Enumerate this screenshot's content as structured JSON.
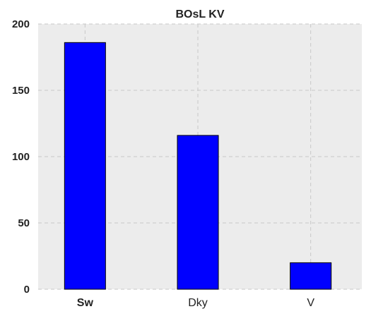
{
  "chart_data": {
    "type": "bar",
    "title": "BOsL KV",
    "xlabel": "",
    "ylabel": "",
    "categories": [
      "Sw",
      "Dky",
      "V"
    ],
    "bold_categories": [
      "Sw"
    ],
    "values": [
      186,
      116,
      20
    ],
    "ylim": [
      0,
      200
    ],
    "yticks": [
      0,
      50,
      100,
      150,
      200
    ],
    "grid": true,
    "bar_color": "#0000ff",
    "bar_edge_color": "#000000",
    "plot_background": "#ececec",
    "grid_color": "#c8c8c8",
    "text_color": "#222222"
  }
}
